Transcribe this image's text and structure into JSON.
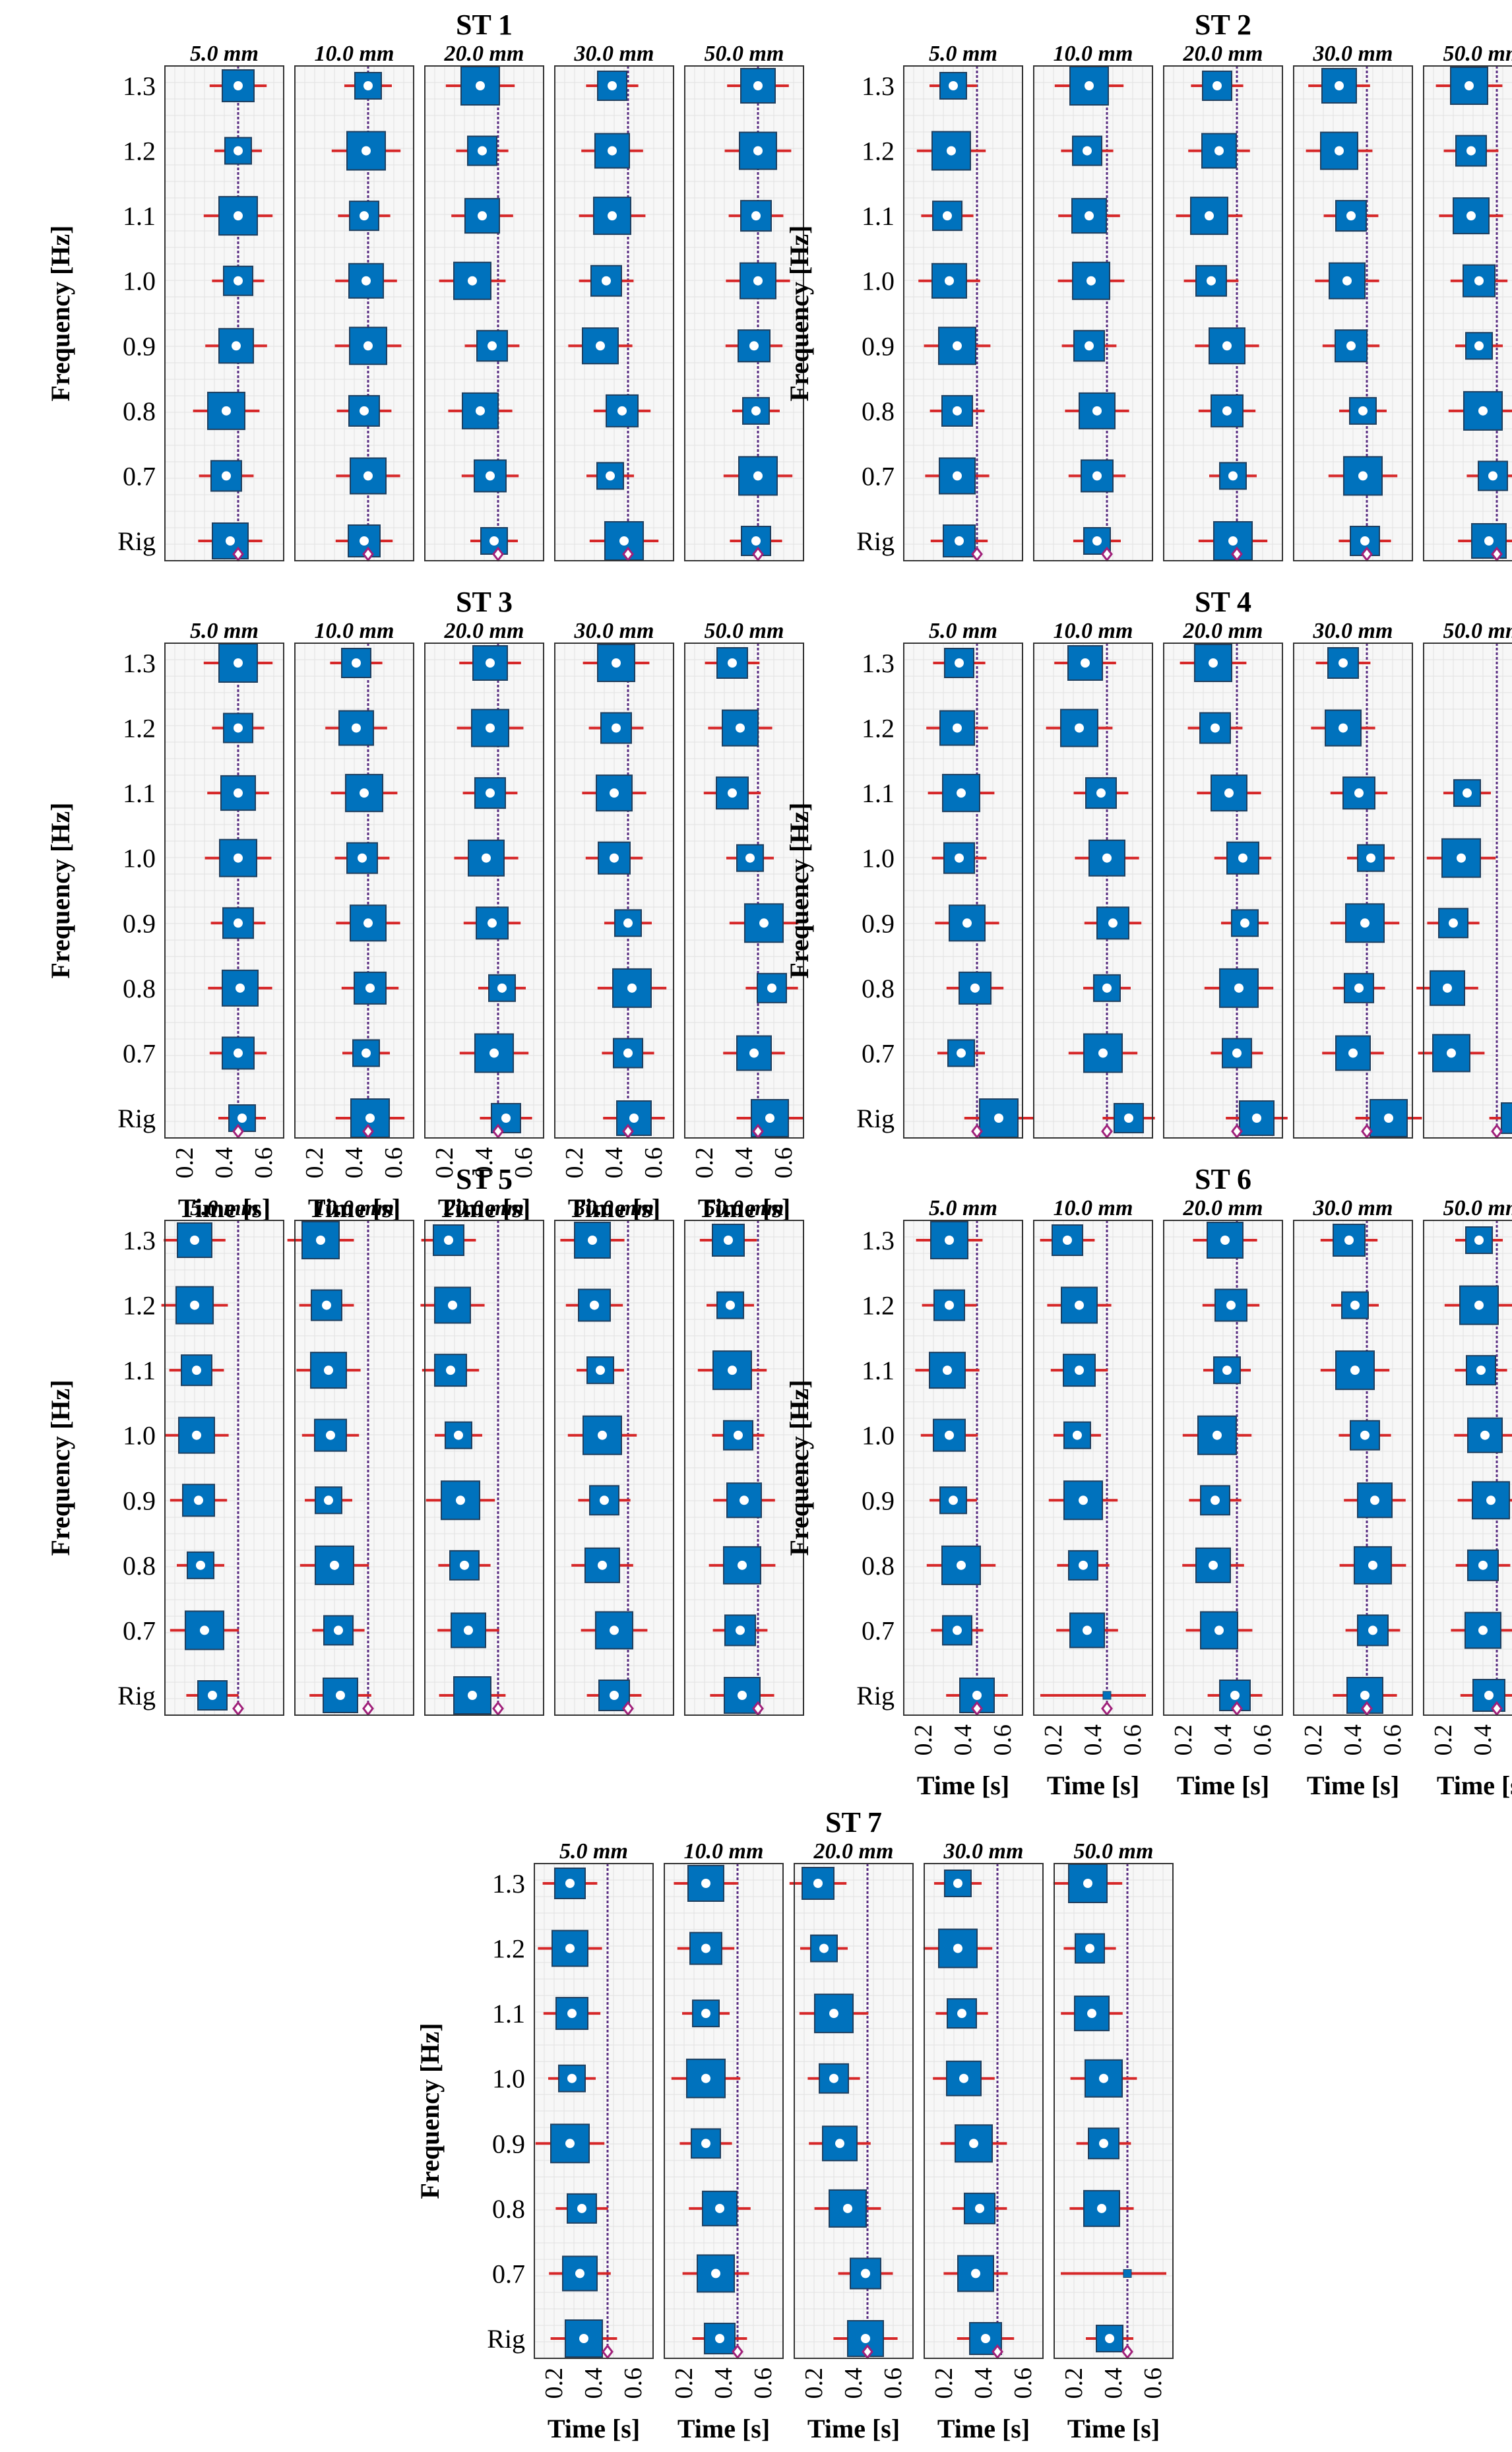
{
  "figure": {
    "ylabel": "Frequency [Hz]",
    "xlabel": "Time [s]",
    "panel_titles": [
      "5.0 mm",
      "10.0 mm",
      "20.0 mm",
      "30.0 mm",
      "50.0 mm"
    ],
    "y_categories": [
      "1.3",
      "1.2",
      "1.1",
      "1.0",
      "0.9",
      "0.8",
      "0.7",
      "Rig"
    ],
    "x_ticks": [
      "0.2",
      "0.4",
      "0.6"
    ]
  },
  "colors": {
    "box": "#0072BD",
    "box_edge": "#1f3f5f",
    "whisker": "#D62728",
    "mean_marker": "#ffffff",
    "reference_line": "#5a2d82",
    "rig_marker": "#A0207A",
    "grid": "#e2e2e2",
    "panel_bg": "#f7f7f7"
  },
  "chart_data": [
    {
      "type": "box",
      "title": "ST 1",
      "xlim": [
        0.1,
        0.7
      ],
      "ylim": [
        "Rig",
        "1.3"
      ],
      "categories": [
        "1.3",
        "1.2",
        "1.1",
        "1.0",
        "0.9",
        "0.8",
        "0.7",
        "Rig"
      ],
      "panels": [
        {
          "title": "5.0 mm",
          "reference": 0.47,
          "rig_marker": 0.47,
          "medians": [
            0.47,
            0.47,
            0.47,
            0.47,
            0.46,
            0.41,
            0.41,
            0.43
          ]
        },
        {
          "title": "10.0 mm",
          "reference": 0.47,
          "rig_marker": 0.47,
          "medians": [
            0.47,
            0.46,
            0.45,
            0.46,
            0.47,
            0.45,
            0.47,
            0.45
          ]
        },
        {
          "title": "20.0 mm",
          "reference": 0.47,
          "rig_marker": 0.47,
          "medians": [
            0.38,
            0.39,
            0.39,
            0.34,
            0.44,
            0.38,
            0.43,
            0.45
          ]
        },
        {
          "title": "30.0 mm",
          "reference": 0.47,
          "rig_marker": 0.47,
          "medians": [
            0.39,
            0.39,
            0.39,
            0.36,
            0.33,
            0.44,
            0.38,
            0.45
          ]
        },
        {
          "title": "50.0 mm",
          "reference": 0.47,
          "rig_marker": 0.47,
          "medians": [
            0.47,
            0.47,
            0.46,
            0.47,
            0.45,
            0.46,
            0.47,
            0.46
          ]
        }
      ]
    },
    {
      "type": "box",
      "title": "ST 2",
      "xlim": [
        0.1,
        0.7
      ],
      "ylim": [
        "Rig",
        "1.3"
      ],
      "categories": [
        "1.3",
        "1.2",
        "1.1",
        "1.0",
        "0.9",
        "0.8",
        "0.7",
        "Rig"
      ],
      "panels": [
        {
          "title": "5.0 mm",
          "reference": 0.47,
          "rig_marker": 0.47,
          "medians": [
            0.35,
            0.34,
            0.32,
            0.33,
            0.37,
            0.37,
            0.37,
            0.38
          ]
        },
        {
          "title": "10.0 mm",
          "reference": 0.47,
          "rig_marker": 0.47,
          "medians": [
            0.38,
            0.37,
            0.38,
            0.39,
            0.38,
            0.42,
            0.42,
            0.42
          ]
        },
        {
          "title": "20.0 mm",
          "reference": 0.47,
          "rig_marker": 0.47,
          "medians": [
            0.37,
            0.38,
            0.33,
            0.34,
            0.42,
            0.42,
            0.45,
            0.45
          ]
        },
        {
          "title": "30.0 mm",
          "reference": 0.47,
          "rig_marker": 0.47,
          "medians": [
            0.33,
            0.33,
            0.39,
            0.37,
            0.39,
            0.45,
            0.45,
            0.46
          ]
        },
        {
          "title": "50.0 mm",
          "reference": 0.47,
          "rig_marker": 0.47,
          "medians": [
            0.33,
            0.34,
            0.34,
            0.38,
            0.38,
            0.4,
            0.45,
            0.43
          ]
        }
      ]
    },
    {
      "type": "box",
      "title": "ST 3",
      "xlim": [
        0.1,
        0.7
      ],
      "ylim": [
        "Rig",
        "1.3"
      ],
      "categories": [
        "1.3",
        "1.2",
        "1.1",
        "1.0",
        "0.9",
        "0.8",
        "0.7",
        "Rig"
      ],
      "panels": [
        {
          "title": "5.0 mm",
          "reference": 0.47,
          "rig_marker": 0.47,
          "medians": [
            0.47,
            0.47,
            0.47,
            0.47,
            0.47,
            0.48,
            0.47,
            0.49
          ]
        },
        {
          "title": "10.0 mm",
          "reference": 0.47,
          "rig_marker": 0.47,
          "medians": [
            0.41,
            0.41,
            0.45,
            0.44,
            0.47,
            0.48,
            0.46,
            0.48
          ]
        },
        {
          "title": "20.0 mm",
          "reference": 0.47,
          "rig_marker": 0.47,
          "medians": [
            0.43,
            0.43,
            0.43,
            0.41,
            0.44,
            0.49,
            0.45,
            0.51
          ]
        },
        {
          "title": "30.0 mm",
          "reference": 0.47,
          "rig_marker": 0.47,
          "medians": [
            0.41,
            0.41,
            0.4,
            0.4,
            0.47,
            0.49,
            0.47,
            0.5
          ]
        },
        {
          "title": "50.0 mm",
          "reference": 0.47,
          "rig_marker": 0.47,
          "medians": [
            0.34,
            0.38,
            0.34,
            0.43,
            0.5,
            0.54,
            0.45,
            0.53
          ]
        }
      ]
    },
    {
      "type": "box",
      "title": "ST 4",
      "xlim": [
        0.1,
        0.7
      ],
      "ylim": [
        "Rig",
        "1.3"
      ],
      "categories": [
        "1.3",
        "1.2",
        "1.1",
        "1.0",
        "0.9",
        "0.8",
        "0.7",
        "Rig"
      ],
      "panels": [
        {
          "title": "5.0 mm",
          "reference": 0.47,
          "rig_marker": 0.47,
          "medians": [
            0.38,
            0.37,
            0.39,
            0.38,
            0.42,
            0.46,
            0.39,
            0.58
          ]
        },
        {
          "title": "10.0 mm",
          "reference": 0.47,
          "rig_marker": 0.47,
          "medians": [
            0.36,
            0.33,
            0.44,
            0.47,
            0.5,
            0.47,
            0.45,
            0.58
          ]
        },
        {
          "title": "20.0 mm",
          "reference": 0.47,
          "rig_marker": 0.47,
          "medians": [
            0.35,
            0.36,
            0.43,
            0.5,
            0.51,
            0.48,
            0.47,
            0.57
          ]
        },
        {
          "title": "30.0 mm",
          "reference": 0.47,
          "rig_marker": 0.47,
          "medians": [
            0.35,
            0.35,
            0.43,
            0.49,
            0.46,
            0.43,
            0.4,
            0.58
          ]
        },
        {
          "title": "50.0 mm",
          "reference": 0.47,
          "rig_marker": 0.47,
          "medians": [
            null,
            null,
            0.32,
            0.29,
            0.25,
            0.22,
            0.24,
            0.57
          ]
        }
      ]
    },
    {
      "type": "box",
      "title": "ST 5",
      "xlim": [
        0.1,
        0.7
      ],
      "ylim": [
        "Rig",
        "1.3"
      ],
      "categories": [
        "1.3",
        "1.2",
        "1.1",
        "1.0",
        "0.9",
        "0.8",
        "0.7",
        "Rig"
      ],
      "panels": [
        {
          "title": "5.0 mm",
          "reference": 0.47,
          "rig_marker": 0.47,
          "medians": [
            0.25,
            0.25,
            0.26,
            0.26,
            0.27,
            0.28,
            0.3,
            0.34
          ]
        },
        {
          "title": "10.0 mm",
          "reference": 0.47,
          "rig_marker": 0.47,
          "medians": [
            0.23,
            0.26,
            0.27,
            0.28,
            0.27,
            0.3,
            0.32,
            0.33
          ]
        },
        {
          "title": "20.0 mm",
          "reference": 0.47,
          "rig_marker": 0.47,
          "medians": [
            0.22,
            0.24,
            0.23,
            0.27,
            0.28,
            0.3,
            0.32,
            0.34
          ]
        },
        {
          "title": "30.0 mm",
          "reference": 0.47,
          "rig_marker": 0.47,
          "medians": [
            0.29,
            0.3,
            0.33,
            0.34,
            0.35,
            0.34,
            0.4,
            0.4
          ]
        },
        {
          "title": "50.0 mm",
          "reference": 0.47,
          "rig_marker": 0.47,
          "medians": [
            0.32,
            0.33,
            0.34,
            0.37,
            0.4,
            0.39,
            0.38,
            0.39
          ]
        }
      ]
    },
    {
      "type": "box",
      "title": "ST 6",
      "xlim": [
        0.1,
        0.7
      ],
      "ylim": [
        "Rig",
        "1.3"
      ],
      "categories": [
        "1.3",
        "1.2",
        "1.1",
        "1.0",
        "0.9",
        "0.8",
        "0.7",
        "Rig"
      ],
      "panels": [
        {
          "title": "5.0 mm",
          "reference": 0.47,
          "rig_marker": 0.47,
          "medians": [
            0.33,
            0.33,
            0.32,
            0.33,
            0.35,
            0.39,
            0.37,
            0.47
          ]
        },
        {
          "title": "10.0 mm",
          "reference": 0.47,
          "rig_marker": 0.47,
          "medians": [
            0.27,
            0.33,
            0.33,
            0.32,
            0.35,
            0.35,
            0.37,
            null
          ]
        },
        {
          "title": "20.0 mm",
          "reference": 0.47,
          "rig_marker": 0.47,
          "medians": [
            0.41,
            0.44,
            0.42,
            0.37,
            0.36,
            0.35,
            0.38,
            0.46
          ]
        },
        {
          "title": "30.0 mm",
          "reference": 0.47,
          "rig_marker": 0.47,
          "medians": [
            0.38,
            0.41,
            0.41,
            0.46,
            0.51,
            0.5,
            0.5,
            0.46
          ]
        },
        {
          "title": "50.0 mm",
          "reference": 0.47,
          "rig_marker": 0.47,
          "medians": [
            0.38,
            0.38,
            0.39,
            0.41,
            0.44,
            0.4,
            0.4,
            0.43
          ]
        }
      ]
    },
    {
      "type": "box",
      "title": "ST 7",
      "xlim": [
        0.1,
        0.7
      ],
      "ylim": [
        "Rig",
        "1.3"
      ],
      "categories": [
        "1.3",
        "1.2",
        "1.1",
        "1.0",
        "0.9",
        "0.8",
        "0.7",
        "Rig"
      ],
      "panels": [
        {
          "title": "5.0 mm",
          "reference": 0.47,
          "rig_marker": 0.47,
          "medians": [
            0.28,
            0.28,
            0.29,
            0.29,
            0.28,
            0.34,
            0.33,
            0.35
          ]
        },
        {
          "title": "10.0 mm",
          "reference": 0.47,
          "rig_marker": 0.47,
          "medians": [
            0.31,
            0.31,
            0.31,
            0.31,
            0.31,
            0.38,
            0.36,
            0.38
          ]
        },
        {
          "title": "20.0 mm",
          "reference": 0.47,
          "rig_marker": 0.47,
          "medians": [
            0.22,
            0.25,
            0.3,
            0.3,
            0.33,
            0.37,
            0.46,
            0.46
          ]
        },
        {
          "title": "30.0 mm",
          "reference": 0.47,
          "rig_marker": 0.47,
          "medians": [
            0.27,
            0.27,
            0.29,
            0.3,
            0.35,
            0.38,
            0.36,
            0.41
          ]
        },
        {
          "title": "50.0 mm",
          "reference": 0.47,
          "rig_marker": 0.47,
          "medians": [
            0.27,
            0.28,
            0.29,
            0.35,
            0.35,
            0.34,
            null,
            0.38
          ]
        }
      ]
    }
  ]
}
